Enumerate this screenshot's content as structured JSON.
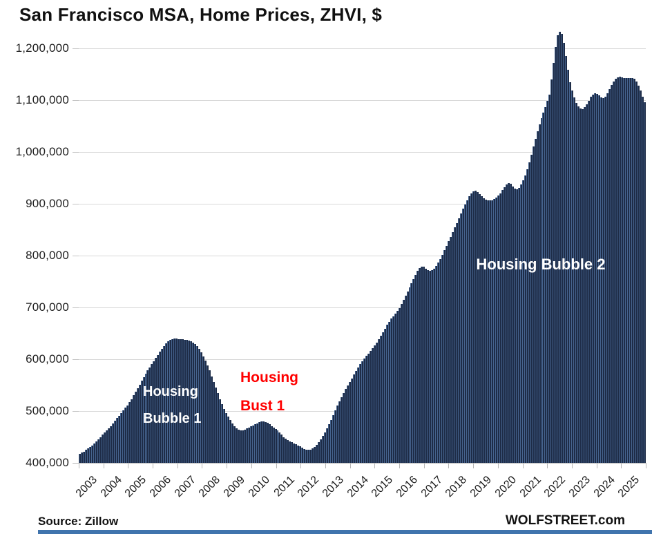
{
  "title": "San Francisco MSA, Home Prices, ZHVI, $",
  "footer": {
    "source": "Source: Zillow",
    "brand": "WOLFSTREET.com"
  },
  "annotations": {
    "bubble1_line1": "Housing",
    "bubble1_line2": "Bubble 1",
    "bust1_line1": "Housing",
    "bust1_line2": "Bust 1",
    "bubble2": "Housing Bubble 2"
  },
  "colors": {
    "bar_fill": "#1e2c47",
    "bar_stripe": "#46648f",
    "gridline": "#d8d8d8",
    "axis": "#b5b5b5",
    "annotation_white": "#ffffff",
    "annotation_red": "#ff0000",
    "bottom_bar_blue": "#4074ad"
  },
  "chart_data": {
    "type": "bar",
    "title": "San Francisco MSA, Home Prices, ZHVI, $",
    "xlabel": "",
    "ylabel": "",
    "x_start": "2003-01",
    "x_freq": "monthly",
    "grid": "horizontal",
    "legend": "none",
    "x_tick_labels": [
      "2003",
      "2004",
      "2005",
      "2006",
      "2007",
      "2008",
      "2009",
      "2010",
      "2011",
      "2012",
      "2013",
      "2014",
      "2015",
      "2016",
      "2017",
      "2018",
      "2019",
      "2020",
      "2021",
      "2022",
      "2023",
      "2024",
      "2025"
    ],
    "y_tick_labels": [
      "400,000",
      "500,000",
      "600,000",
      "700,000",
      "800,000",
      "900,000",
      "1,000,000",
      "1,100,000",
      "1,200,000"
    ],
    "ylim_thousands": [
      400,
      1233
    ],
    "y_tick_step_thousands": 100,
    "values_usd_thousands": [
      418,
      420,
      422,
      425,
      428,
      431,
      434,
      438,
      442,
      446,
      450,
      454,
      458,
      462,
      466,
      471,
      476,
      481,
      486,
      491,
      496,
      501,
      506,
      511,
      517,
      523,
      530,
      537,
      544,
      551,
      558,
      565,
      572,
      578,
      584,
      590,
      596,
      602,
      608,
      614,
      620,
      625,
      630,
      634,
      637,
      639,
      640,
      640,
      639,
      638,
      638,
      637,
      637,
      636,
      634,
      632,
      629,
      625,
      620,
      613,
      605,
      597,
      588,
      578,
      567,
      556,
      545,
      534,
      523,
      513,
      504,
      496,
      489,
      482,
      476,
      471,
      467,
      464,
      463,
      463,
      464,
      466,
      468,
      470,
      472,
      474,
      476,
      478,
      480,
      480,
      479,
      477,
      474,
      471,
      468,
      465,
      462,
      458,
      454,
      450,
      447,
      444,
      442,
      440,
      438,
      436,
      434,
      432,
      429,
      427,
      426,
      425,
      426,
      428,
      431,
      435,
      440,
      446,
      452,
      459,
      466,
      474,
      483,
      492,
      501,
      510,
      519,
      527,
      535,
      542,
      549,
      556,
      563,
      570,
      577,
      584,
      590,
      596,
      601,
      606,
      611,
      616,
      621,
      626,
      632,
      638,
      645,
      652,
      659,
      666,
      672,
      678,
      683,
      688,
      693,
      698,
      706,
      714,
      722,
      730,
      738,
      746,
      754,
      762,
      770,
      776,
      779,
      778,
      775,
      772,
      771,
      772,
      775,
      780,
      786,
      793,
      801,
      810,
      819,
      828,
      836,
      845,
      854,
      863,
      872,
      881,
      890,
      899,
      907,
      914,
      920,
      924,
      925,
      923,
      919,
      915,
      911,
      908,
      906,
      906,
      907,
      909,
      912,
      916,
      920,
      926,
      932,
      937,
      940,
      938,
      933,
      929,
      928,
      931,
      937,
      945,
      955,
      967,
      980,
      995,
      1010,
      1025,
      1040,
      1053,
      1065,
      1076,
      1087,
      1098,
      1110,
      1140,
      1172,
      1202,
      1225,
      1232,
      1228,
      1210,
      1185,
      1158,
      1135,
      1118,
      1105,
      1095,
      1088,
      1084,
      1083,
      1086,
      1092,
      1099,
      1106,
      1111,
      1113,
      1112,
      1109,
      1105,
      1104,
      1107,
      1113,
      1121,
      1129,
      1136,
      1141,
      1144,
      1145,
      1144,
      1143,
      1142,
      1142,
      1143,
      1143,
      1141,
      1136,
      1128,
      1118,
      1107,
      1096
    ]
  }
}
